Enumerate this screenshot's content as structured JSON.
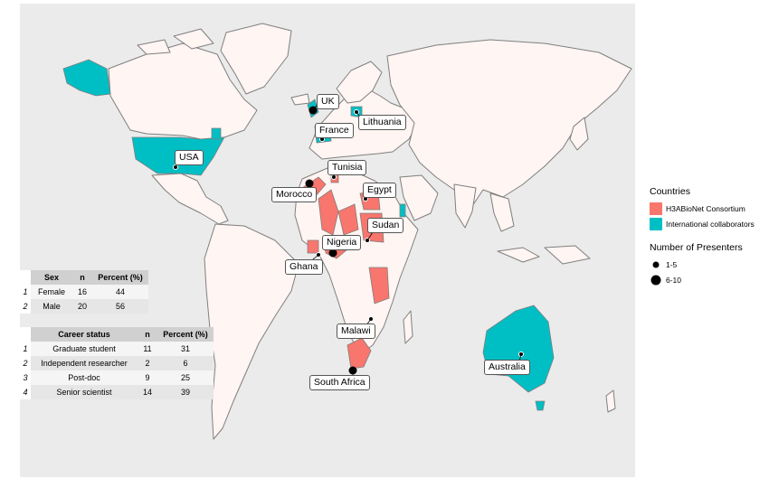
{
  "colors": {
    "consortium": "#f8766d",
    "collaborators": "#00bfc4",
    "land": "#fff5f2",
    "border": "#7f7f7f",
    "panel": "#ebebeb"
  },
  "countries": [
    {
      "name": "UK",
      "group": "consortium_or_collab",
      "presenters": "6-10"
    },
    {
      "name": "Lithuania",
      "group": "collaborators",
      "presenters": "1-5"
    },
    {
      "name": "France",
      "group": "collaborators",
      "presenters": "1-5"
    },
    {
      "name": "USA",
      "group": "collaborators",
      "presenters": "1-5"
    },
    {
      "name": "Tunisia",
      "group": "consortium",
      "presenters": "1-5"
    },
    {
      "name": "Morocco",
      "group": "consortium",
      "presenters": "6-10"
    },
    {
      "name": "Egypt",
      "group": "consortium",
      "presenters": "1-5"
    },
    {
      "name": "Sudan",
      "group": "consortium",
      "presenters": "1-5"
    },
    {
      "name": "Nigeria",
      "group": "consortium",
      "presenters": "6-10"
    },
    {
      "name": "Ghana",
      "group": "consortium",
      "presenters": "1-5"
    },
    {
      "name": "Malawi",
      "group": "consortium",
      "presenters": "1-5"
    },
    {
      "name": "South Africa",
      "group": "consortium",
      "presenters": "6-10"
    },
    {
      "name": "Australia",
      "group": "collaborators",
      "presenters": "1-5"
    }
  ],
  "sex_table": {
    "headers": [
      "Sex",
      "n",
      "Percent (%)"
    ],
    "rows": [
      {
        "idx": "1",
        "label": "Female",
        "n": "16",
        "pct": "44"
      },
      {
        "idx": "2",
        "label": "Male",
        "n": "20",
        "pct": "56"
      }
    ]
  },
  "career_table": {
    "headers": [
      "Career status",
      "n",
      "Percent (%)"
    ],
    "rows": [
      {
        "idx": "1",
        "label": "Graduate student",
        "n": "11",
        "pct": "31"
      },
      {
        "idx": "2",
        "label": "Independent researcher",
        "n": "2",
        "pct": "6"
      },
      {
        "idx": "3",
        "label": "Post-doc",
        "n": "9",
        "pct": "25"
      },
      {
        "idx": "4",
        "label": "Senior scientist",
        "n": "14",
        "pct": "39"
      }
    ]
  },
  "legend": {
    "countries_title": "Countries",
    "consortium_label": "H3ABioNet Consortium",
    "collaborators_label": "International collaborators",
    "presenters_title": "Number of Presenters",
    "size_small": "1-5",
    "size_large": "6-10"
  }
}
